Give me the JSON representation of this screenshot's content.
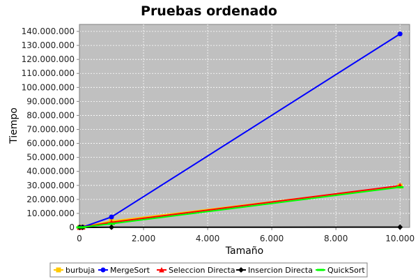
{
  "chart_data": {
    "type": "line",
    "title": "Pruebas ordenado",
    "xlabel": "Tamaño",
    "ylabel": "Tiempo",
    "xlim": [
      0,
      10300
    ],
    "ylim": [
      0,
      145000000
    ],
    "x_ticks": [
      0,
      2000,
      4000,
      6000,
      8000,
      10000
    ],
    "x_tick_labels": [
      "0",
      "2.000",
      "4.000",
      "6.000",
      "8.000",
      "10.000"
    ],
    "y_ticks": [
      0,
      10000000,
      20000000,
      30000000,
      40000000,
      50000000,
      60000000,
      70000000,
      80000000,
      90000000,
      100000000,
      110000000,
      120000000,
      130000000,
      140000000
    ],
    "y_tick_labels": [
      "0",
      "10.000.000",
      "20.000.000",
      "30.000.000",
      "40.000.000",
      "50.000.000",
      "60.000.000",
      "70.000.000",
      "80.000.000",
      "90.000.000",
      "100.000.000",
      "110.000.000",
      "120.000.000",
      "130.000.000",
      "140.000.000"
    ],
    "grid": true,
    "plot_background": "#c0c0c0",
    "legend_position": "bottom",
    "series": [
      {
        "name": "burbuja",
        "color": "#ffc800",
        "marker": "square",
        "x": [
          10,
          100,
          1000,
          10000
        ],
        "y": [
          0,
          300000,
          4500000,
          29500000
        ]
      },
      {
        "name": "MergeSort",
        "color": "#0000ff",
        "marker": "circle",
        "x": [
          10,
          100,
          1000,
          10000
        ],
        "y": [
          0,
          200000,
          7400000,
          138200000
        ]
      },
      {
        "name": "Seleccion Directa",
        "color": "#ff0000",
        "marker": "triangle",
        "x": [
          10,
          100,
          1000,
          10000
        ],
        "y": [
          0,
          200000,
          3600000,
          29800000
        ]
      },
      {
        "name": "Insercion Directa",
        "color": "#000000",
        "marker": "diamond",
        "x": [
          10,
          100,
          1000,
          10000
        ],
        "y": [
          0,
          0,
          100000,
          200000
        ]
      },
      {
        "name": "QuickSort",
        "color": "#00ff00",
        "marker": "rectangle",
        "x": [
          10,
          100,
          1000,
          10000
        ],
        "y": [
          0,
          100000,
          2600000,
          28700000
        ]
      }
    ]
  }
}
